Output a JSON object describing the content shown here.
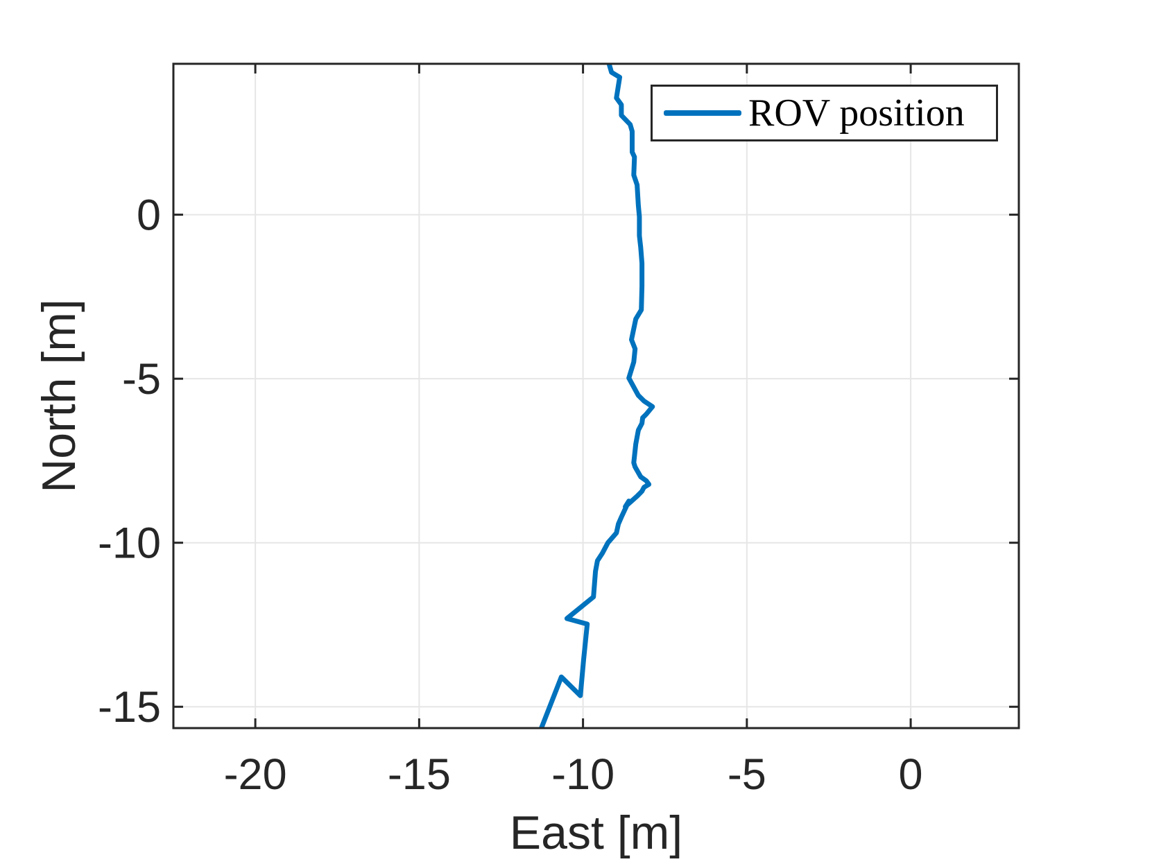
{
  "figure": {
    "background": "#ffffff",
    "accent_blue": "#0072bd",
    "axis_color": "#262626",
    "grid_color": "#e6e6e6"
  },
  "chart_data": {
    "type": "line",
    "title": "",
    "xlabel": "East [m]",
    "ylabel": "North [m]",
    "xlim": [
      -22.5,
      3.3
    ],
    "ylim": [
      -15.65,
      4.6
    ],
    "xticks": [
      -20,
      -15,
      -10,
      -5,
      0
    ],
    "xtick_labels": [
      "-20",
      "-15",
      "-10",
      "-5",
      "0"
    ],
    "yticks": [
      0,
      -5,
      -10,
      -15
    ],
    "ytick_labels": [
      "0",
      "-5",
      "-10",
      "-15"
    ],
    "grid": true,
    "grid_color": "#e6e6e6",
    "axis_color": "#262626",
    "legend": {
      "position": "northeast",
      "entries": [
        {
          "label": "ROV position",
          "color": "#0072bd"
        }
      ]
    },
    "series": [
      {
        "name": "ROV position",
        "color": "#0072bd",
        "line_width": 7,
        "points": [
          [
            -9.24,
            4.72
          ],
          [
            -9.13,
            4.34
          ],
          [
            -8.88,
            4.19
          ],
          [
            -8.98,
            3.56
          ],
          [
            -8.83,
            3.35
          ],
          [
            -8.83,
            3.03
          ],
          [
            -8.56,
            2.75
          ],
          [
            -8.5,
            2.54
          ],
          [
            -8.5,
            1.91
          ],
          [
            -8.43,
            1.76
          ],
          [
            -8.45,
            1.21
          ],
          [
            -8.35,
            0.91
          ],
          [
            -8.31,
            0.28
          ],
          [
            -8.28,
            -0.06
          ],
          [
            -8.28,
            -0.64
          ],
          [
            -8.24,
            -1.0
          ],
          [
            -8.2,
            -1.48
          ],
          [
            -8.2,
            -2.18
          ],
          [
            -8.22,
            -2.9
          ],
          [
            -8.39,
            -3.18
          ],
          [
            -8.52,
            -3.81
          ],
          [
            -8.41,
            -4.09
          ],
          [
            -8.45,
            -4.49
          ],
          [
            -8.6,
            -4.98
          ],
          [
            -8.31,
            -5.51
          ],
          [
            -8.14,
            -5.68
          ],
          [
            -7.88,
            -5.85
          ],
          [
            -8.07,
            -6.08
          ],
          [
            -8.18,
            -6.19
          ],
          [
            -8.2,
            -6.36
          ],
          [
            -8.31,
            -6.57
          ],
          [
            -8.39,
            -6.99
          ],
          [
            -8.45,
            -7.56
          ],
          [
            -8.41,
            -7.69
          ],
          [
            -8.24,
            -7.99
          ],
          [
            -8.07,
            -8.11
          ],
          [
            -7.99,
            -8.22
          ],
          [
            -8.14,
            -8.31
          ],
          [
            -8.2,
            -8.43
          ],
          [
            -8.35,
            -8.58
          ],
          [
            -8.71,
            -8.9
          ],
          [
            -8.6,
            -8.73
          ],
          [
            -8.83,
            -9.22
          ],
          [
            -8.92,
            -9.43
          ],
          [
            -8.98,
            -9.7
          ],
          [
            -9.24,
            -10.0
          ],
          [
            -9.41,
            -10.32
          ],
          [
            -9.56,
            -10.55
          ],
          [
            -9.62,
            -10.87
          ],
          [
            -9.68,
            -11.65
          ],
          [
            -10.49,
            -12.31
          ],
          [
            -9.87,
            -12.48
          ],
          [
            -9.98,
            -13.56
          ],
          [
            -10.08,
            -14.66
          ],
          [
            -10.66,
            -14.09
          ],
          [
            -11.31,
            -15.75
          ]
        ]
      }
    ]
  }
}
